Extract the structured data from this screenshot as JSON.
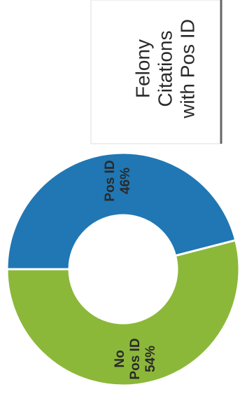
{
  "chart_data": {
    "type": "pie",
    "title": "Felony Citations with Pos ID",
    "title_lines": [
      "Felony",
      "Citations",
      "with Pos ID"
    ],
    "slices": [
      {
        "label_lines": [
          "Pos ID",
          "46%"
        ],
        "value": 46,
        "color": "#2077B4"
      },
      {
        "label_lines": [
          "No",
          "Pos ID",
          "54%"
        ],
        "value": 54,
        "color": "#8CB83A"
      }
    ],
    "hole": "donut",
    "rotation": "90deg clockwise (page scanned sideways)"
  },
  "colors": {
    "arrow": "#6E6E64",
    "title_box_border": "#dedede",
    "title_box_edge": "#666666",
    "label_text": "#2a2a2a"
  }
}
